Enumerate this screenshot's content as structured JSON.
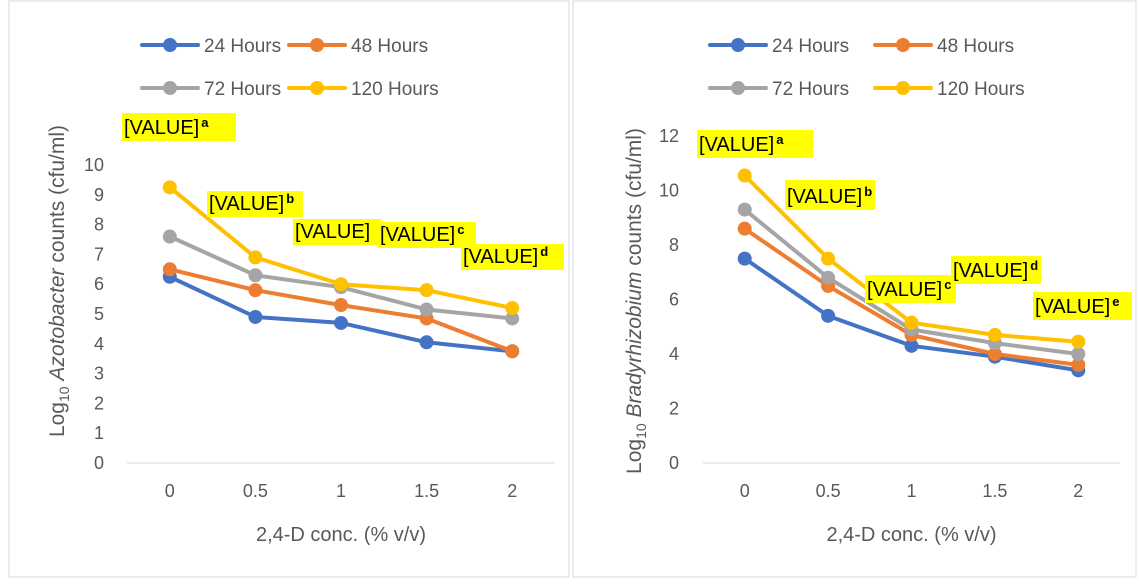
{
  "colors": {
    "series": [
      "#4472C4",
      "#ED7D31",
      "#A5A5A5",
      "#FFC000"
    ],
    "label_bg": "#FFFF00",
    "axis": "#D9D9D9",
    "text": "#595959",
    "border": "#D9D9D9"
  },
  "chart_data": [
    {
      "type": "line",
      "title": "",
      "ylabel": {
        "pre": "Log",
        "sub": "10",
        "italic": "Azotobacter",
        "post": " counts (cfu/ml)"
      },
      "xlabel": "2,4-D conc. (% v/v)",
      "x": [
        "0",
        "0.5",
        "1",
        "1.5",
        "2"
      ],
      "ylim": [
        0,
        10
      ],
      "yticks": [
        "0",
        "1",
        "2",
        "3",
        "4",
        "5",
        "6",
        "7",
        "8",
        "9",
        "10"
      ],
      "grid": false,
      "legend": "top",
      "series": [
        {
          "name": "24 Hours",
          "values": [
            6.25,
            4.9,
            4.7,
            4.05,
            3.75
          ]
        },
        {
          "name": "48 Hours",
          "values": [
            6.5,
            5.8,
            5.3,
            4.85,
            3.75
          ]
        },
        {
          "name": "72 Hours",
          "values": [
            7.6,
            6.3,
            5.9,
            5.15,
            4.85
          ]
        },
        {
          "name": "120 Hours",
          "values": [
            9.25,
            6.9,
            6.0,
            5.8,
            5.2
          ]
        }
      ],
      "annotations": [
        {
          "text": "[VALUE]",
          "sup": "a"
        },
        {
          "text": "[VALUE]",
          "sup": "b"
        },
        {
          "text": "[VALUE]",
          "sup": ""
        },
        {
          "text": "[VALUE]",
          "sup": "c"
        },
        {
          "text": "[VALUE]",
          "sup": "d"
        }
      ]
    },
    {
      "type": "line",
      "title": "",
      "ylabel": {
        "pre": "Log",
        "sub": "10",
        "italic": "Bradyrhizobium",
        "post": " counts (cfu/ml)"
      },
      "xlabel": "2,4-D conc. (% v/v)",
      "x": [
        "0",
        "0.5",
        "1",
        "1.5",
        "2"
      ],
      "ylim": [
        0,
        12
      ],
      "yticks": [
        "0",
        "2",
        "4",
        "6",
        "8",
        "10",
        "12"
      ],
      "grid": false,
      "legend": "top",
      "series": [
        {
          "name": "24 Hours",
          "values": [
            7.5,
            5.4,
            4.3,
            3.9,
            3.4
          ]
        },
        {
          "name": "48 Hours",
          "values": [
            8.6,
            6.5,
            4.7,
            4.0,
            3.6
          ]
        },
        {
          "name": "72 Hours",
          "values": [
            9.3,
            6.8,
            4.9,
            4.4,
            4.0
          ]
        },
        {
          "name": "120 Hours",
          "values": [
            10.55,
            7.5,
            5.15,
            4.7,
            4.45
          ]
        }
      ],
      "annotations": [
        {
          "text": "[VALUE]",
          "sup": "a"
        },
        {
          "text": "[VALUE]",
          "sup": "b"
        },
        {
          "text": "[VALUE]",
          "sup": "c"
        },
        {
          "text": "[VALUE]",
          "sup": "d"
        },
        {
          "text": "[VALUE]",
          "sup": "e"
        }
      ]
    }
  ]
}
